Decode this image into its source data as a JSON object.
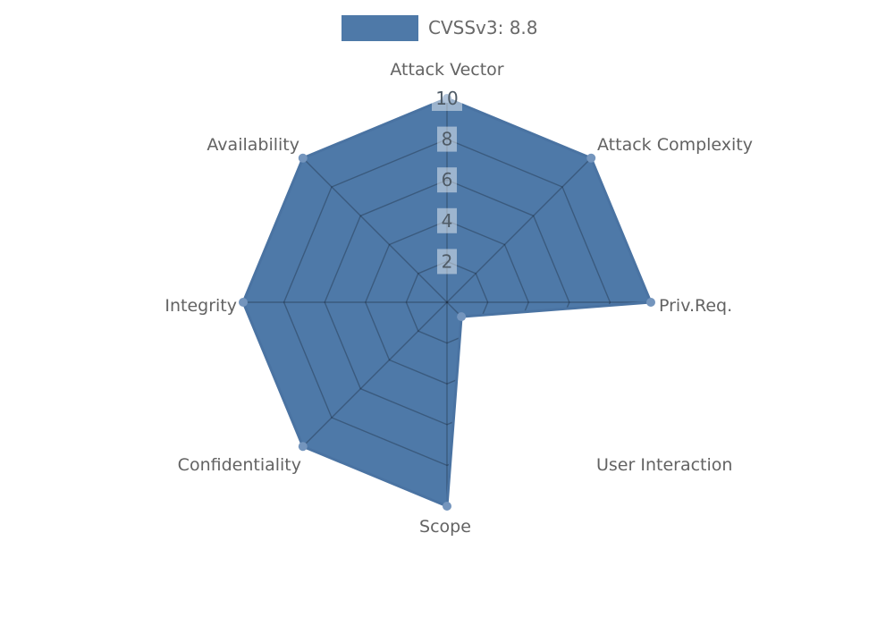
{
  "chart_data": {
    "type": "radar",
    "title": "",
    "legend_entries": [
      "CVSSv3: 8.8"
    ],
    "legend_position": "top-center",
    "categories": [
      "Attack Vector",
      "Attack Complexity",
      "Priv.Req.",
      "User Interaction",
      "Scope",
      "Confidentiality",
      "Integrity",
      "Availability"
    ],
    "series": [
      {
        "name": "CVSSv3: 8.8",
        "values": [
          10,
          10,
          10,
          1,
          10,
          10,
          10,
          10
        ]
      }
    ],
    "rlim": [
      0,
      10
    ],
    "ticks": [
      2,
      4,
      6,
      8,
      10
    ],
    "grid": true,
    "colors": {
      "fill": "#4e79a8",
      "outline": "#4a73a2",
      "marker": "#7495bd",
      "grid_line": "rgba(0,0,0,0.25)",
      "tick_box": "rgba(255,255,255,0.45)",
      "tick_text": "#4f5b66",
      "label_text": "#636363",
      "legend_text": "#696969",
      "background": "#ffffff"
    }
  },
  "legend": {
    "label": "CVSSv3: 8.8"
  }
}
